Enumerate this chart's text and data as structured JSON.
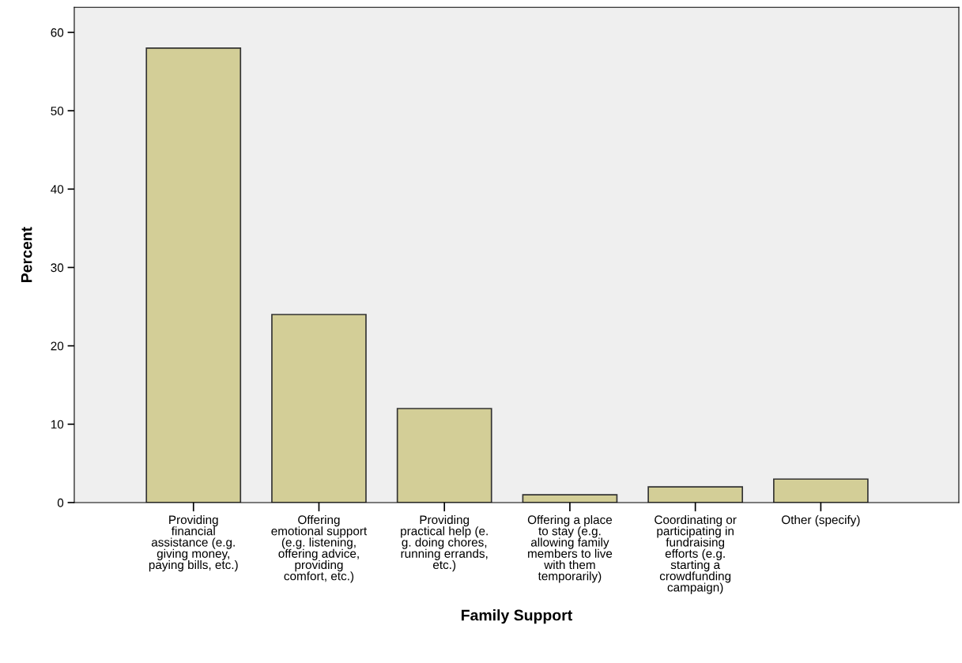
{
  "chart_data": {
    "type": "bar",
    "xlabel": "Family Support",
    "ylabel": "Percent",
    "categories": [
      "Providing\nfinancial\nassistance (e.g.\ngiving money,\npaying bills, etc.)",
      "Offering\nemotional support\n(e.g. listening,\noffering advice,\nproviding\ncomfort, etc.)",
      "Providing\npractical help (e.\ng. doing chores,\nrunning errands,\netc.)",
      "Offering a place\nto stay (e.g.\nallowing family\nmembers to live\nwith them\ntemporarily)",
      "Coordinating or\nparticipating in\nfundraising\nefforts (e.g.\nstarting a\ncrowdfunding\ncampaign)",
      "Other (specify)"
    ],
    "values": [
      58,
      24,
      12,
      1,
      2,
      3
    ],
    "color": "#d3ce97",
    "ylim": [
      0,
      63.2
    ],
    "yticks": [
      0,
      10,
      20,
      30,
      40,
      50,
      60
    ],
    "grid": false
  }
}
